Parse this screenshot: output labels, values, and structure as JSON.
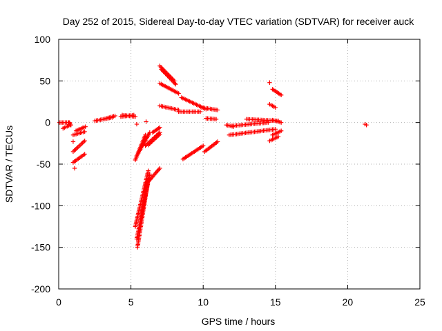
{
  "chart_data": {
    "type": "scatter",
    "title": "Day 252 of 2015, Sidereal Day-to-day VTEC variation (SDTVAR) for receiver auck",
    "xlabel": "GPS time / hours",
    "ylabel": "SDTVAR / TECUs",
    "xlim": [
      0,
      25
    ],
    "ylim": [
      -200,
      100
    ],
    "xticks": [
      0,
      5,
      10,
      15,
      20,
      25
    ],
    "yticks": [
      -200,
      -150,
      -100,
      -50,
      0,
      50,
      100
    ],
    "grid": true,
    "marker": "plus",
    "color": "#ff0000",
    "series": [
      {
        "segments": [
          {
            "x": [
              0.05,
              0.75
            ],
            "y": [
              0,
              0
            ]
          },
          {
            "x": [
              0.3,
              0.8
            ],
            "y": [
              -7,
              -3
            ]
          },
          {
            "x": [
              0.7,
              0.85
            ],
            "y": [
              0,
              -3
            ]
          },
          {
            "x": [
              1.0,
              1.8
            ],
            "y": [
              -15,
              -11
            ]
          },
          {
            "x": [
              1.2,
              1.85
            ],
            "y": [
              -10,
              -5
            ]
          },
          {
            "x": [
              1.0,
              1.8
            ],
            "y": [
              -35,
              -22
            ]
          },
          {
            "x": [
              1.0,
              1.8
            ],
            "y": [
              -48,
              -38
            ]
          },
          {
            "x": [
              2.5,
              3.7
            ],
            "y": [
              2,
              6
            ]
          },
          {
            "x": [
              3.3,
              3.9
            ],
            "y": [
              5,
              8
            ]
          },
          {
            "x": [
              4.3,
              5.2
            ],
            "y": [
              7,
              9
            ]
          },
          {
            "x": [
              4.4,
              5.3
            ],
            "y": [
              9,
              7
            ]
          },
          {
            "x": [
              5.3,
              6.0
            ],
            "y": [
              -45,
              -15
            ]
          },
          {
            "x": [
              5.4,
              6.3
            ],
            "y": [
              -40,
              -12
            ]
          },
          {
            "x": [
              5.3,
              6.2
            ],
            "y": [
              -125,
              -58
            ]
          },
          {
            "x": [
              5.4,
              6.3
            ],
            "y": [
              -140,
              -62
            ]
          },
          {
            "x": [
              5.45,
              6.2
            ],
            "y": [
              -150,
              -68
            ]
          },
          {
            "x": [
              6.0,
              7.0
            ],
            "y": [
              -75,
              -55
            ]
          },
          {
            "x": [
              6.0,
              7.0
            ],
            "y": [
              -28,
              -12
            ]
          },
          {
            "x": [
              6.2,
              7.0
            ],
            "y": [
              -27,
              -14
            ]
          },
          {
            "x": [
              6.5,
              7.0
            ],
            "y": [
              -12,
              -6
            ]
          },
          {
            "x": [
              7.0,
              8.0
            ],
            "y": [
              68,
              50
            ]
          },
          {
            "x": [
              7.1,
              8.1
            ],
            "y": [
              64,
              46
            ]
          },
          {
            "x": [
              7.0,
              8.3
            ],
            "y": [
              47,
              35
            ]
          },
          {
            "x": [
              8.5,
              10.2
            ],
            "y": [
              30,
              16
            ]
          },
          {
            "x": [
              7.0,
              8.3
            ],
            "y": [
              20,
              15
            ]
          },
          {
            "x": [
              8.3,
              9.8
            ],
            "y": [
              13,
              13
            ]
          },
          {
            "x": [
              9.9,
              11.0
            ],
            "y": [
              18,
              15
            ]
          },
          {
            "x": [
              10.2,
              10.9
            ],
            "y": [
              5,
              4
            ]
          },
          {
            "x": [
              8.6,
              10.0
            ],
            "y": [
              -44,
              -28
            ]
          },
          {
            "x": [
              10.1,
              11.0
            ],
            "y": [
              -35,
              -23
            ]
          },
          {
            "x": [
              11.6,
              12.1
            ],
            "y": [
              -3,
              -5
            ]
          },
          {
            "x": [
              11.8,
              15.0
            ],
            "y": [
              -15,
              -8
            ]
          },
          {
            "x": [
              12.0,
              14.5
            ],
            "y": [
              -4,
              0
            ]
          },
          {
            "x": [
              13.0,
              15.2
            ],
            "y": [
              4,
              2
            ]
          },
          {
            "x": [
              14.6,
              15.2
            ],
            "y": [
              -22,
              -17
            ]
          },
          {
            "x": [
              14.8,
              15.4
            ],
            "y": [
              -15,
              -10
            ]
          },
          {
            "x": [
              14.8,
              15.4
            ],
            "y": [
              3,
              0
            ]
          },
          {
            "x": [
              14.6,
              15.0
            ],
            "y": [
              22,
              18
            ]
          },
          {
            "x": [
              14.8,
              15.4
            ],
            "y": [
              40,
              33
            ]
          }
        ],
        "points": [
          {
            "x": 1.1,
            "y": -55
          },
          {
            "x": 1.0,
            "y": -23
          },
          {
            "x": 5.4,
            "y": -2
          },
          {
            "x": 6.05,
            "y": 1
          },
          {
            "x": 14.6,
            "y": 48
          },
          {
            "x": 21.2,
            "y": -2
          },
          {
            "x": 21.3,
            "y": -3
          }
        ]
      }
    ]
  }
}
